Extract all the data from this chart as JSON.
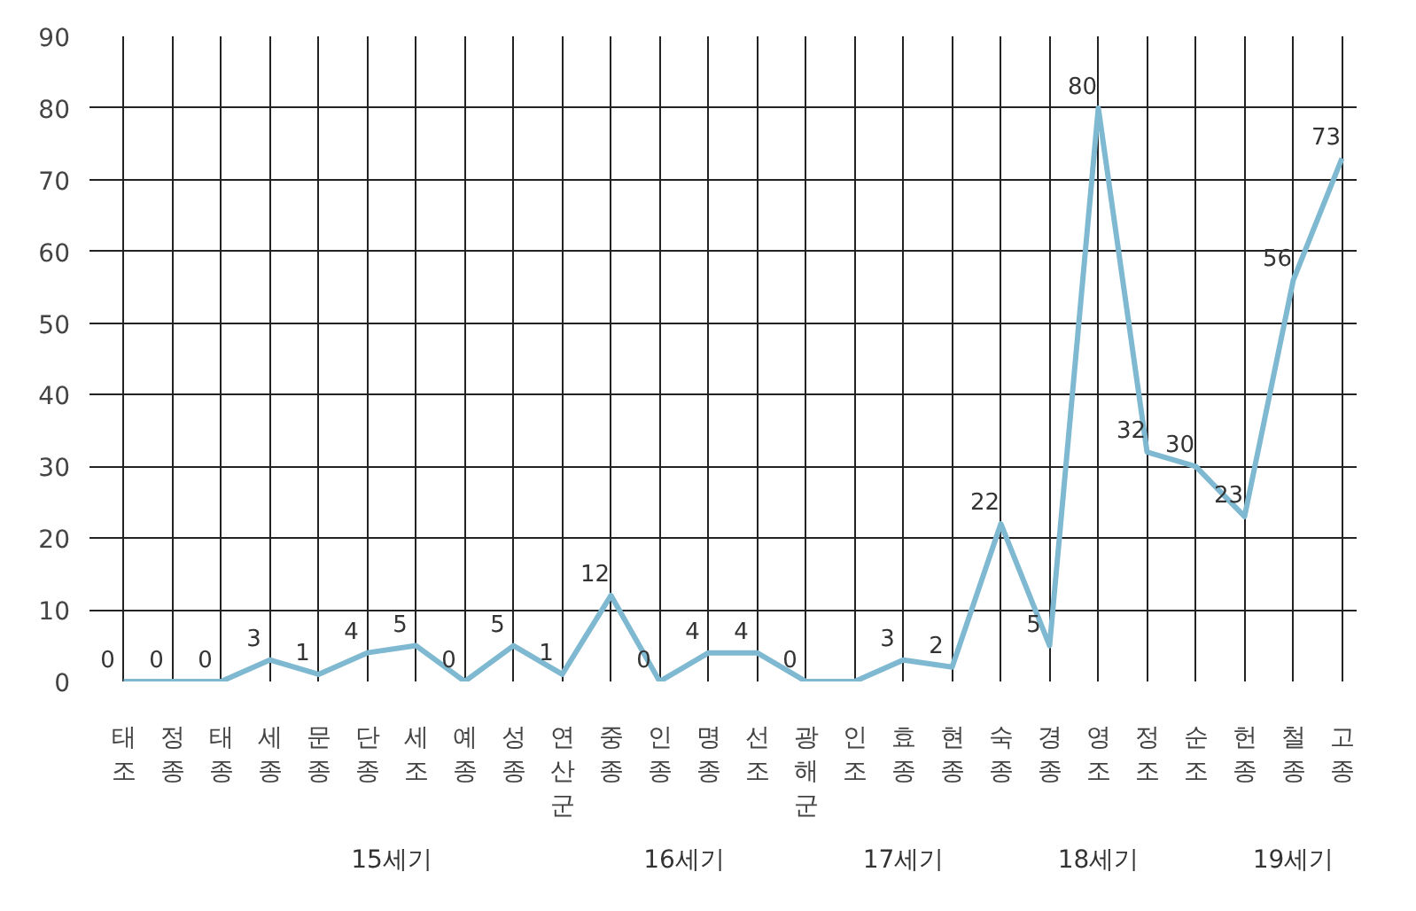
{
  "chart_data": {
    "type": "line",
    "categories": [
      "태조",
      "정종",
      "태종",
      "세종",
      "문종",
      "단종",
      "세조",
      "예종",
      "성종",
      "연산군",
      "중종",
      "인종",
      "명종",
      "선조",
      "광해군",
      "인조",
      "효종",
      "현종",
      "숙종",
      "경종",
      "영조",
      "정조",
      "순조",
      "헌종",
      "철종",
      "고종"
    ],
    "series": [
      {
        "color": "#7fb9d1",
        "values": [
          0,
          0,
          0,
          3,
          1,
          4,
          5,
          0,
          5,
          1,
          12,
          0,
          4,
          4,
          0,
          0,
          3,
          2,
          22,
          5,
          80,
          32,
          30,
          23,
          56,
          73
        ],
        "value_labels": [
          "0",
          "0",
          "0",
          "3",
          "1",
          "4",
          "5",
          "0",
          "5",
          "1",
          "12",
          "0",
          "4",
          "4",
          "0",
          null,
          "3",
          "2",
          "22",
          "5",
          "80",
          "32",
          "30",
          "23",
          "56",
          "73"
        ]
      }
    ],
    "ylim": [
      0,
      90
    ],
    "yticks": [
      0,
      10,
      20,
      30,
      40,
      50,
      60,
      70,
      80,
      90
    ],
    "grid": true,
    "marker": "none",
    "line_style": "solid",
    "annotations": [
      "15세기",
      "16세기",
      "17세기",
      "18세기",
      "19세기"
    ]
  }
}
